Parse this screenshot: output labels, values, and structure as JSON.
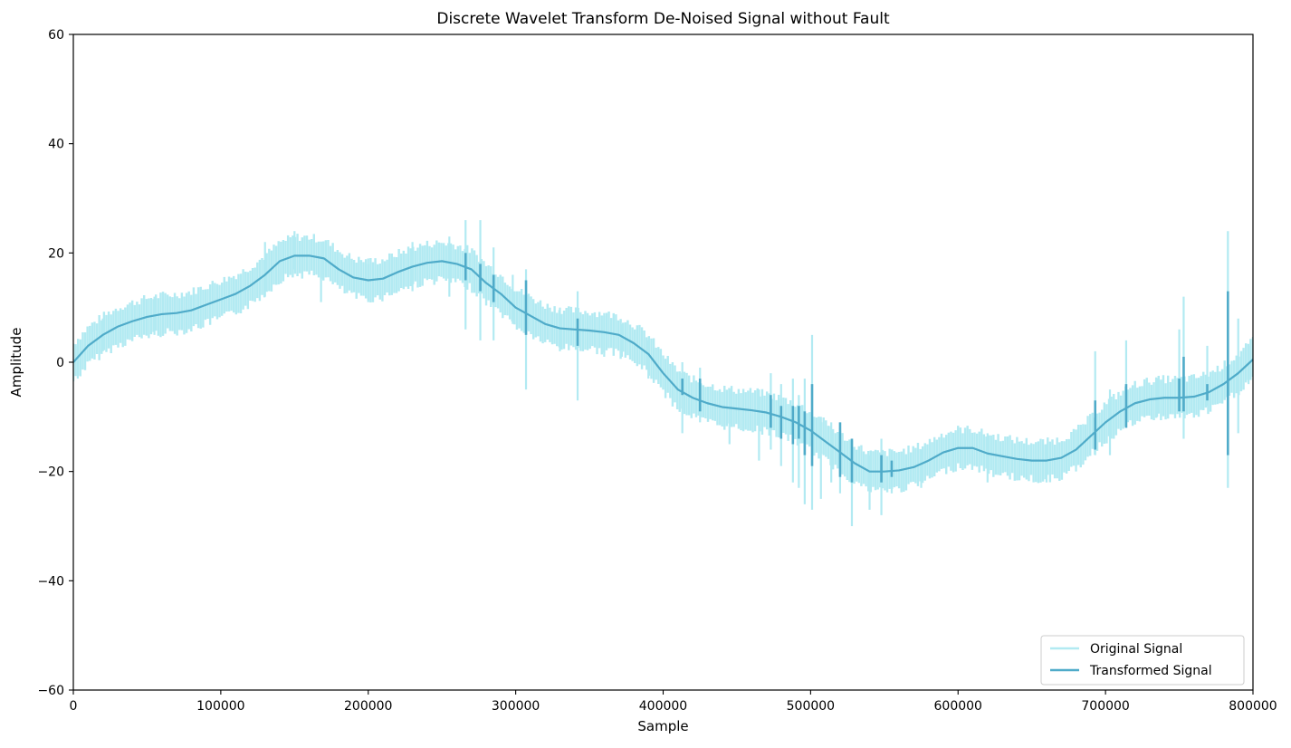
{
  "chart_data": {
    "type": "line",
    "title": "Discrete Wavelet Transform De-Noised Signal without Fault",
    "xlabel": "Sample",
    "ylabel": "Amplitude",
    "xlim": [
      0,
      800000
    ],
    "ylim": [
      -60,
      60
    ],
    "xticks": [
      0,
      100000,
      200000,
      300000,
      400000,
      500000,
      600000,
      700000,
      800000
    ],
    "xtick_labels": [
      "0",
      "100000",
      "200000",
      "300000",
      "400000",
      "500000",
      "600000",
      "700000",
      "800000"
    ],
    "yticks": [
      -60,
      -40,
      -20,
      0,
      20,
      40,
      60
    ],
    "ytick_labels": [
      "−60",
      "−40",
      "−20",
      "0",
      "20",
      "40",
      "60"
    ],
    "grid": false,
    "legend_position": "lower-right",
    "series": [
      {
        "name": "Original Signal",
        "color": "#b2eaf2",
        "band_halfwidth": 3.5,
        "x": [
          0,
          10000,
          20000,
          30000,
          40000,
          50000,
          60000,
          70000,
          80000,
          90000,
          100000,
          110000,
          120000,
          130000,
          140000,
          150000,
          160000,
          170000,
          180000,
          190000,
          200000,
          210000,
          220000,
          230000,
          240000,
          250000,
          260000,
          270000,
          280000,
          290000,
          300000,
          310000,
          320000,
          330000,
          340000,
          350000,
          360000,
          370000,
          380000,
          390000,
          400000,
          410000,
          420000,
          430000,
          440000,
          450000,
          460000,
          470000,
          480000,
          490000,
          500000,
          510000,
          520000,
          530000,
          540000,
          550000,
          560000,
          570000,
          580000,
          590000,
          600000,
          610000,
          620000,
          630000,
          640000,
          650000,
          660000,
          670000,
          680000,
          690000,
          700000,
          710000,
          720000,
          730000,
          740000,
          750000,
          760000,
          770000,
          780000,
          790000,
          800000
        ],
        "y": [
          0,
          3,
          5,
          6.5,
          7.5,
          8.3,
          8.8,
          9,
          9.5,
          10.5,
          11.5,
          12.5,
          14,
          16,
          18.5,
          19.5,
          19.5,
          19,
          17,
          15.5,
          15,
          15.3,
          16.5,
          17.5,
          18.2,
          18.5,
          18,
          17,
          14.5,
          12.5,
          10,
          8.5,
          7,
          6.2,
          6,
          5.8,
          5.5,
          5,
          3.5,
          1.5,
          -2,
          -5,
          -6.5,
          -7.5,
          -8.2,
          -8.5,
          -8.8,
          -9.2,
          -10,
          -11,
          -12.5,
          -14.5,
          -16.5,
          -18.5,
          -20,
          -20,
          -19.8,
          -19.2,
          -18,
          -16.5,
          -15.7,
          -15.7,
          -16.7,
          -17.2,
          -17.7,
          -18,
          -18,
          -17.5,
          -16,
          -13.5,
          -11,
          -9,
          -7.5,
          -6.8,
          -6.5,
          -6.5,
          -6.3,
          -5.5,
          -4,
          -2,
          0.5
        ],
        "spikes": [
          [
            3000,
            -3,
            3
          ],
          [
            20000,
            2,
            8
          ],
          [
            55000,
            5,
            12
          ],
          [
            80000,
            6,
            12
          ],
          [
            130000,
            12,
            22
          ],
          [
            150000,
            17,
            24
          ],
          [
            168000,
            11,
            22
          ],
          [
            200000,
            11,
            19
          ],
          [
            230000,
            13,
            22
          ],
          [
            255000,
            12,
            23
          ],
          [
            266000,
            6,
            26
          ],
          [
            276000,
            4,
            26
          ],
          [
            285000,
            4,
            21
          ],
          [
            298000,
            7,
            16
          ],
          [
            307000,
            -5,
            17
          ],
          [
            330000,
            2,
            10
          ],
          [
            342000,
            -7,
            13
          ],
          [
            360000,
            1,
            9
          ],
          [
            372000,
            1,
            7
          ],
          [
            390000,
            -3,
            4
          ],
          [
            413000,
            -13,
            0
          ],
          [
            425000,
            -11,
            -1
          ],
          [
            445000,
            -15,
            -5
          ],
          [
            465000,
            -18,
            -5
          ],
          [
            473000,
            -16,
            -2
          ],
          [
            480000,
            -19,
            -4
          ],
          [
            488000,
            -22,
            -3
          ],
          [
            492000,
            -23,
            -6
          ],
          [
            496000,
            -26,
            -3
          ],
          [
            501000,
            -27,
            5
          ],
          [
            507000,
            -25,
            -10
          ],
          [
            514000,
            -22,
            -11
          ],
          [
            520000,
            -24,
            -12
          ],
          [
            528000,
            -30,
            -14
          ],
          [
            540000,
            -27,
            -17
          ],
          [
            548000,
            -28,
            -14
          ],
          [
            555000,
            -24,
            -16
          ],
          [
            575000,
            -23,
            -16
          ],
          [
            620000,
            -22,
            -13
          ],
          [
            660000,
            -22,
            -15
          ],
          [
            680000,
            -20,
            -13
          ],
          [
            693000,
            -17,
            2
          ],
          [
            703000,
            -17,
            -5
          ],
          [
            714000,
            -12,
            4
          ],
          [
            735000,
            -10,
            -3
          ],
          [
            750000,
            -9,
            6
          ],
          [
            753000,
            -14,
            12
          ],
          [
            769000,
            -8,
            3
          ],
          [
            783000,
            -23,
            24
          ],
          [
            790000,
            -13,
            8
          ],
          [
            797000,
            -4,
            3
          ]
        ]
      },
      {
        "name": "Transformed Signal",
        "color": "#4fabc9",
        "x": [
          0,
          10000,
          20000,
          30000,
          40000,
          50000,
          60000,
          70000,
          80000,
          90000,
          100000,
          110000,
          120000,
          130000,
          140000,
          150000,
          160000,
          170000,
          180000,
          190000,
          200000,
          210000,
          220000,
          230000,
          240000,
          250000,
          260000,
          270000,
          280000,
          290000,
          300000,
          310000,
          320000,
          330000,
          340000,
          350000,
          360000,
          370000,
          380000,
          390000,
          400000,
          410000,
          420000,
          430000,
          440000,
          450000,
          460000,
          470000,
          480000,
          490000,
          500000,
          510000,
          520000,
          530000,
          540000,
          550000,
          560000,
          570000,
          580000,
          590000,
          600000,
          610000,
          620000,
          630000,
          640000,
          650000,
          660000,
          670000,
          680000,
          690000,
          700000,
          710000,
          720000,
          730000,
          740000,
          750000,
          760000,
          770000,
          780000,
          790000,
          800000
        ],
        "y": [
          0,
          3,
          5,
          6.5,
          7.5,
          8.3,
          8.8,
          9,
          9.5,
          10.5,
          11.5,
          12.5,
          14,
          16,
          18.5,
          19.5,
          19.5,
          19,
          17,
          15.5,
          15,
          15.3,
          16.5,
          17.5,
          18.2,
          18.5,
          18,
          17,
          14.5,
          12.5,
          10,
          8.5,
          7,
          6.2,
          6,
          5.8,
          5.5,
          5,
          3.5,
          1.5,
          -2,
          -5,
          -6.5,
          -7.5,
          -8.2,
          -8.5,
          -8.8,
          -9.2,
          -10,
          -11,
          -12.5,
          -14.5,
          -16.5,
          -18.5,
          -20,
          -20,
          -19.8,
          -19.2,
          -18,
          -16.5,
          -15.7,
          -15.7,
          -16.7,
          -17.2,
          -17.7,
          -18,
          -18,
          -17.5,
          -16,
          -13.5,
          -11,
          -9,
          -7.5,
          -6.8,
          -6.5,
          -6.5,
          -6.3,
          -5.5,
          -4,
          -2,
          0.5
        ],
        "spikes": [
          [
            266000,
            15,
            20
          ],
          [
            276000,
            13,
            18
          ],
          [
            285000,
            11,
            16
          ],
          [
            307000,
            5,
            15
          ],
          [
            342000,
            3,
            8
          ],
          [
            413000,
            -6,
            -3
          ],
          [
            425000,
            -9,
            -3
          ],
          [
            473000,
            -12,
            -6
          ],
          [
            480000,
            -14,
            -8
          ],
          [
            488000,
            -15,
            -8
          ],
          [
            492000,
            -14,
            -8
          ],
          [
            496000,
            -17,
            -9
          ],
          [
            501000,
            -19,
            -4
          ],
          [
            520000,
            -21,
            -11
          ],
          [
            528000,
            -22,
            -14
          ],
          [
            548000,
            -22,
            -17
          ],
          [
            555000,
            -21,
            -18
          ],
          [
            693000,
            -16,
            -7
          ],
          [
            714000,
            -12,
            -4
          ],
          [
            750000,
            -9,
            -3
          ],
          [
            753000,
            -9,
            1
          ],
          [
            769000,
            -7,
            -4
          ],
          [
            783000,
            -17,
            13
          ]
        ]
      }
    ]
  }
}
